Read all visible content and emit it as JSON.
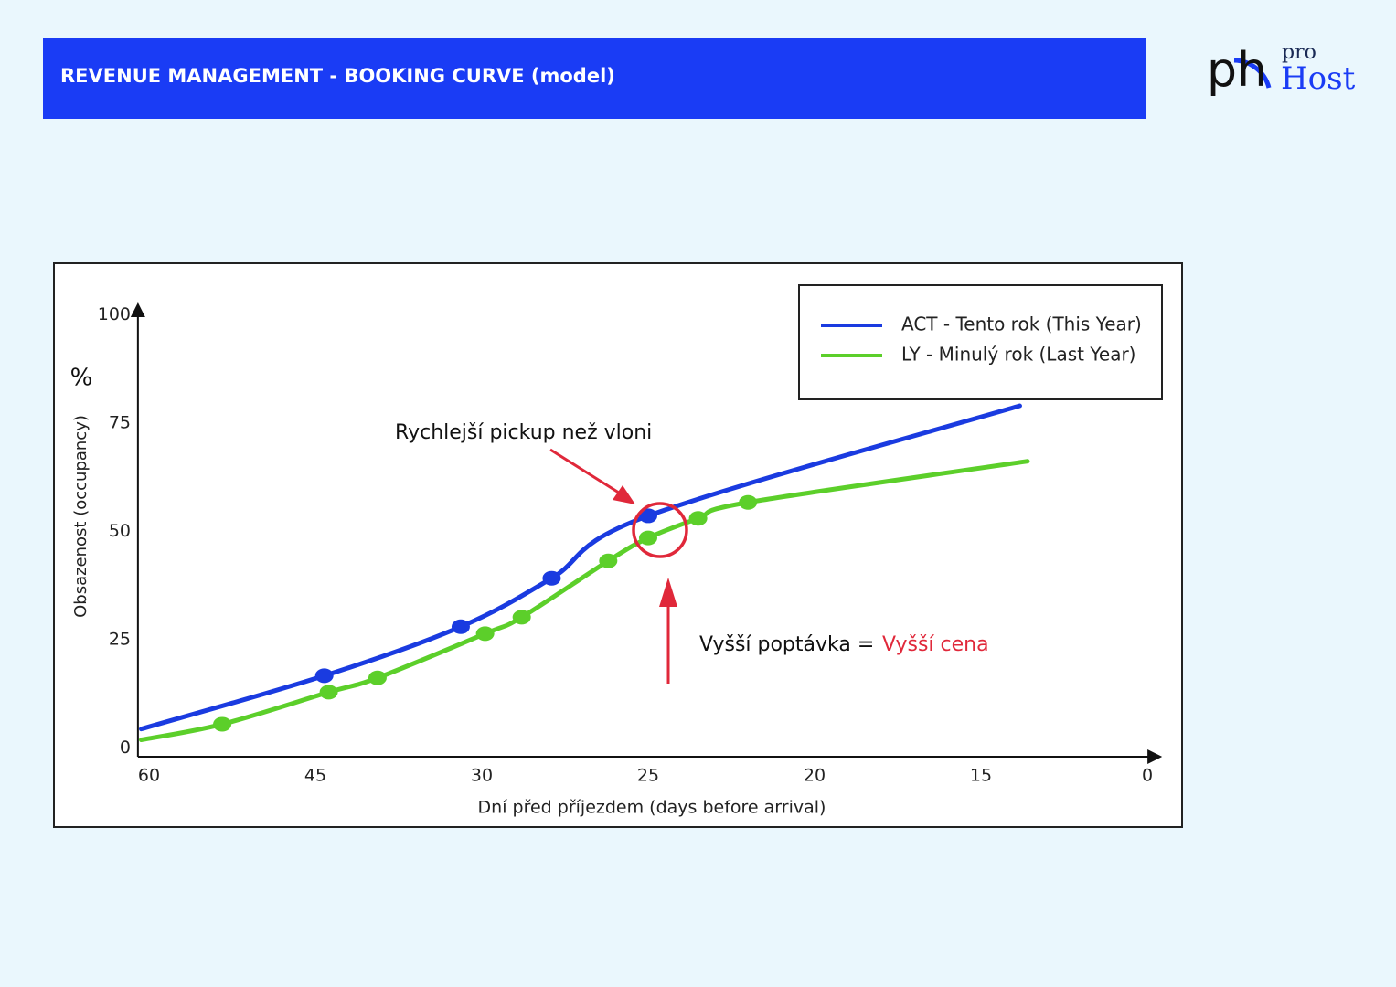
{
  "header": {
    "title": "REVENUE MANAGEMENT - BOOKING CURVE (model)"
  },
  "logo": {
    "mark": "ph",
    "prefix": "pro",
    "name": "Host"
  },
  "chart_data": {
    "type": "line",
    "y_unit": "%",
    "ylabel": "Obsazenost (occupancy)",
    "xlabel": "Dní před příjezdem (days before arrival)",
    "xlim": [
      61,
      -1
    ],
    "ylim": [
      -2,
      102
    ],
    "xticks": [
      60,
      45,
      30,
      25,
      20,
      15,
      0
    ],
    "yticks": [
      0,
      25,
      50,
      75,
      100
    ],
    "legend": "top-right",
    "series": [
      {
        "name": "ACT - Tento rok (This Year)",
        "color": "#1a3be0",
        "x": [
          60.7,
          44.2,
          31.9,
          27.9,
          25.0,
          11.5
        ],
        "values": [
          4.4,
          16.7,
          28,
          39.2,
          53.6,
          79
        ]
      },
      {
        "name": "LY - Minulý rok (Last Year)",
        "color": "#5ccf2a",
        "x": [
          60.7,
          53.4,
          43.8,
          39.4,
          29.9,
          28.8,
          26.2,
          25.0,
          23.5,
          22.0,
          10.8
        ],
        "values": [
          1.9,
          5.5,
          12.9,
          16.2,
          26.4,
          30.2,
          43.2,
          48.5,
          53,
          56.7,
          66.2
        ]
      }
    ],
    "annotations": [
      {
        "text": "Rychlejší pickup než vloni"
      },
      {
        "text": "Vyšší poptávka =",
        "highlight": "Vyšší cena"
      }
    ],
    "highlight_color": "#e0283a"
  }
}
